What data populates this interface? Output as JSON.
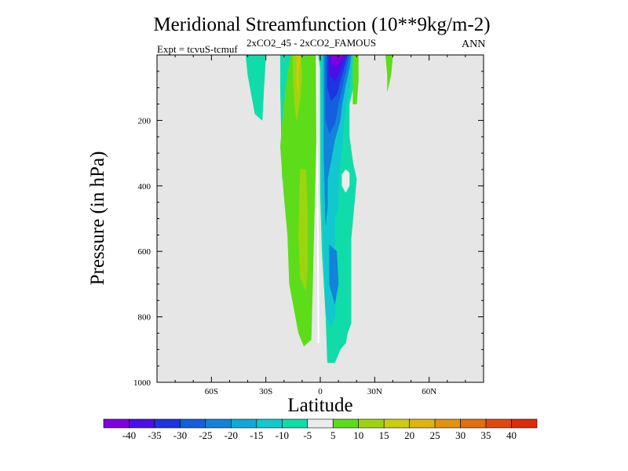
{
  "chart_data": {
    "type": "heatmap",
    "title": "Meridional Streamfunction (10**9kg/m-2)",
    "subtitle": "2xCO2_45 - 2xCO2_FAMOUS",
    "left_label": "Expt = tcvuS-tcmuf",
    "right_label": "ANN",
    "xlabel": "Latitude",
    "ylabel": "Pressure (in hPa)",
    "xlim": [
      -90,
      90
    ],
    "ylim": [
      1000,
      0
    ],
    "x_ticks": [
      {
        "value": -60,
        "label": "60S"
      },
      {
        "value": -30,
        "label": "30S"
      },
      {
        "value": 0,
        "label": "0"
      },
      {
        "value": 30,
        "label": "30N"
      },
      {
        "value": 60,
        "label": "60N"
      }
    ],
    "y_ticks": [
      {
        "value": 200,
        "label": "200"
      },
      {
        "value": 400,
        "label": "400"
      },
      {
        "value": 600,
        "label": "600"
      },
      {
        "value": 800,
        "label": "800"
      },
      {
        "value": 1000,
        "label": "1000"
      }
    ],
    "background_color": "#e6e6e6",
    "colorbar": {
      "labels": [
        "-40",
        "-35",
        "-30",
        "-25",
        "-20",
        "-15",
        "-10",
        "-5",
        "5",
        "10",
        "15",
        "20",
        "25",
        "30",
        "35",
        "40"
      ],
      "colors": [
        "#7f00df",
        "#4b0ee9",
        "#1f33e0",
        "#135fdd",
        "#1183d9",
        "#10a8d8",
        "#11c8cf",
        "#10dcaa",
        "#ececec",
        "#5ddd19",
        "#9ed40f",
        "#cccc10",
        "#e0b30d",
        "#e3920c",
        "#e26e0d",
        "#e0480d",
        "#de2b0d"
      ]
    },
    "regions": [
      {
        "value": -10,
        "color": "#10dcaa",
        "points": [
          [
            -22,
            0
          ],
          [
            -12,
            0
          ],
          [
            -13,
            50
          ],
          [
            -16,
            150
          ],
          [
            -18,
            350
          ],
          [
            -19,
            450
          ],
          [
            -21,
            370
          ],
          [
            -22,
            100
          ]
        ]
      },
      {
        "value": -10,
        "color": "#10dcaa",
        "points": [
          [
            -41,
            0
          ],
          [
            -30,
            0
          ],
          [
            -31,
            90
          ],
          [
            -32,
            200
          ],
          [
            -36,
            180
          ],
          [
            -38,
            120
          ],
          [
            -40,
            60
          ]
        ]
      },
      {
        "value": 10,
        "color": "#5ddd19",
        "points": [
          [
            -16,
            0
          ],
          [
            -2,
            0
          ],
          [
            -2,
            200
          ],
          [
            -3,
            420
          ],
          [
            -4,
            650
          ],
          [
            -5,
            870
          ],
          [
            -9,
            890
          ],
          [
            -12,
            850
          ],
          [
            -17,
            700
          ],
          [
            -18,
            550
          ],
          [
            -20,
            430
          ],
          [
            -22,
            280
          ],
          [
            -20,
            150
          ],
          [
            -18,
            60
          ]
        ]
      },
      {
        "value": 15,
        "color": "#9ed40f",
        "points": [
          [
            -15,
            0
          ],
          [
            -11,
            0
          ],
          [
            -10,
            60
          ],
          [
            -11,
            130
          ],
          [
            -13,
            200
          ],
          [
            -14,
            160
          ],
          [
            -15,
            60
          ]
        ]
      },
      {
        "value": 15,
        "color": "#9ed40f",
        "points": [
          [
            -11,
            350
          ],
          [
            -8,
            350
          ],
          [
            -7,
            480
          ],
          [
            -7,
            650
          ],
          [
            -8,
            720
          ],
          [
            -11,
            680
          ],
          [
            -12,
            550
          ]
        ]
      },
      {
        "value": 20,
        "color": "#cccc10",
        "points": [
          [
            -13,
            0
          ],
          [
            -11,
            0
          ],
          [
            -12,
            60
          ],
          [
            -12,
            120
          ],
          [
            -13,
            90
          ]
        ]
      },
      {
        "value": 10,
        "color": "#5ddd19",
        "points": [
          [
            36,
            0
          ],
          [
            40,
            0
          ],
          [
            39,
            60
          ],
          [
            37,
            110
          ],
          [
            37,
            60
          ]
        ]
      },
      {
        "value": -10,
        "color": "#10dcaa",
        "points": [
          [
            -1,
            0
          ],
          [
            20,
            0
          ],
          [
            19,
            80
          ],
          [
            16,
            150
          ],
          [
            16,
            250
          ],
          [
            18,
            330
          ],
          [
            20,
            380
          ],
          [
            17,
            560
          ],
          [
            17,
            720
          ],
          [
            17,
            820
          ],
          [
            15,
            850
          ],
          [
            14,
            880
          ],
          [
            11,
            900
          ],
          [
            8,
            940
          ],
          [
            4,
            940
          ],
          [
            3,
            790
          ],
          [
            1,
            600
          ],
          [
            0,
            420
          ],
          [
            0,
            200
          ],
          [
            0,
            40
          ]
        ]
      },
      {
        "value": 10,
        "color": "#5ddd19",
        "points": [
          [
            18,
            0
          ],
          [
            21,
            0
          ],
          [
            21,
            80
          ],
          [
            20,
            150
          ],
          [
            18,
            150
          ],
          [
            18,
            80
          ]
        ]
      },
      {
        "value": -15,
        "color": "#11c8cf",
        "points": [
          [
            1,
            0
          ],
          [
            18,
            0
          ],
          [
            17,
            60
          ],
          [
            15,
            130
          ],
          [
            13,
            210
          ],
          [
            12,
            280
          ],
          [
            10,
            380
          ],
          [
            10,
            460
          ],
          [
            8,
            500
          ],
          [
            8,
            600
          ],
          [
            9,
            700
          ],
          [
            8,
            800
          ],
          [
            6,
            830
          ],
          [
            3,
            790
          ],
          [
            2,
            600
          ],
          [
            1,
            420
          ]
        ]
      },
      {
        "value": -20,
        "color": "#1183d9",
        "points": [
          [
            2,
            0
          ],
          [
            17,
            0
          ],
          [
            16,
            40
          ],
          [
            14,
            90
          ],
          [
            12,
            150
          ],
          [
            11,
            200
          ],
          [
            8,
            260
          ],
          [
            6,
            320
          ],
          [
            4,
            380
          ],
          [
            4,
            460
          ],
          [
            3,
            520
          ],
          [
            2,
            300
          ],
          [
            2,
            100
          ]
        ]
      },
      {
        "value": -20,
        "color": "#1183d9",
        "points": [
          [
            5,
            580
          ],
          [
            9,
            600
          ],
          [
            10,
            700
          ],
          [
            8,
            760
          ],
          [
            5,
            700
          ]
        ]
      },
      {
        "value": -25,
        "color": "#135fdd",
        "points": [
          [
            3,
            0
          ],
          [
            16,
            0
          ],
          [
            14,
            50
          ],
          [
            12,
            100
          ],
          [
            10,
            150
          ],
          [
            8,
            210
          ],
          [
            5,
            240
          ],
          [
            3,
            200
          ],
          [
            3,
            80
          ]
        ]
      },
      {
        "value": -30,
        "color": "#1f33e0",
        "points": [
          [
            4,
            0
          ],
          [
            15,
            0
          ],
          [
            13,
            40
          ],
          [
            11,
            80
          ],
          [
            9,
            120
          ],
          [
            6,
            140
          ],
          [
            4,
            100
          ]
        ]
      },
      {
        "value": -35,
        "color": "#4b0ee9",
        "points": [
          [
            5,
            0
          ],
          [
            14,
            0
          ],
          [
            12,
            30
          ],
          [
            10,
            60
          ],
          [
            8,
            80
          ],
          [
            5,
            60
          ]
        ]
      },
      {
        "value": -40,
        "color": "#7f00df",
        "points": [
          [
            6,
            0
          ],
          [
            13,
            0
          ],
          [
            11,
            20
          ],
          [
            9,
            35
          ],
          [
            6,
            25
          ]
        ]
      },
      {
        "value": 5,
        "color": "#ececec",
        "points": [
          [
            12,
            365
          ],
          [
            14,
            350
          ],
          [
            16,
            360
          ],
          [
            16,
            400
          ],
          [
            14,
            420
          ],
          [
            12,
            400
          ]
        ]
      }
    ]
  }
}
